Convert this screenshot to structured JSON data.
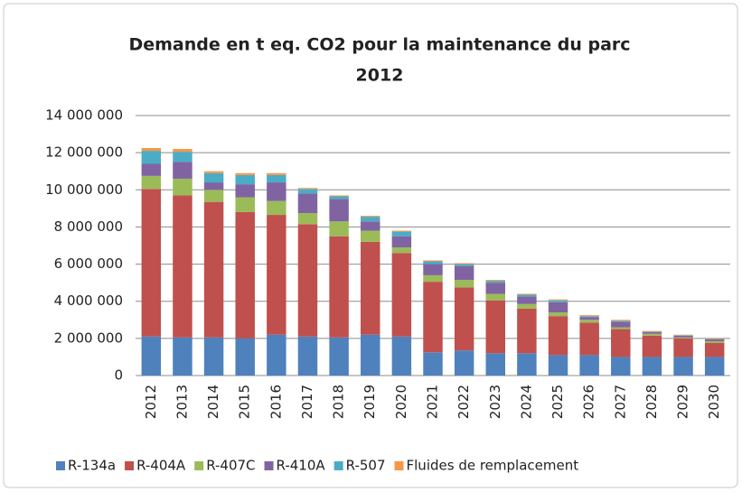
{
  "chart_data": {
    "type": "stacked_bar",
    "title": [
      "Demande en t eq. CO2 pour la maintenance du parc",
      "2012"
    ],
    "categories": [
      "2012",
      "2013",
      "2014",
      "2015",
      "2016",
      "2017",
      "2018",
      "2019",
      "2020",
      "2021",
      "2022",
      "2023",
      "2024",
      "2025",
      "2026",
      "2027",
      "2028",
      "2029",
      "2030"
    ],
    "series": [
      {
        "name": "R-134a",
        "color": "#4f81bd",
        "values": [
          2100000,
          2050000,
          2050000,
          2000000,
          2200000,
          2100000,
          2050000,
          2200000,
          2100000,
          1250000,
          1350000,
          1200000,
          1200000,
          1100000,
          1100000,
          1000000,
          1000000,
          1000000,
          1000000
        ]
      },
      {
        "name": "R-404A",
        "color": "#c0504d",
        "values": [
          7950000,
          7650000,
          7300000,
          6800000,
          6450000,
          6050000,
          5450000,
          5000000,
          4500000,
          3800000,
          3400000,
          2850000,
          2400000,
          2100000,
          1750000,
          1500000,
          1150000,
          1000000,
          750000
        ]
      },
      {
        "name": "R-407C",
        "color": "#9bbb59",
        "values": [
          700000,
          900000,
          650000,
          800000,
          750000,
          600000,
          800000,
          600000,
          300000,
          350000,
          400000,
          350000,
          250000,
          200000,
          150000,
          100000,
          100000,
          50000,
          100000
        ]
      },
      {
        "name": "R-410A",
        "color": "#8064a2",
        "values": [
          650000,
          900000,
          400000,
          700000,
          1000000,
          1050000,
          1200000,
          500000,
          600000,
          600000,
          750000,
          600000,
          400000,
          550000,
          150000,
          300000,
          100000,
          100000,
          100000
        ]
      },
      {
        "name": "R-507",
        "color": "#4bacc6",
        "values": [
          700000,
          550000,
          500000,
          500000,
          400000,
          250000,
          150000,
          250000,
          250000,
          150000,
          100000,
          100000,
          100000,
          100000,
          50000,
          50000,
          20000,
          20000,
          20000
        ]
      },
      {
        "name": "Fluides de remplacement",
        "color": "#f79646",
        "values": [
          150000,
          150000,
          100000,
          100000,
          100000,
          50000,
          50000,
          50000,
          50000,
          50000,
          50000,
          50000,
          50000,
          50000,
          50000,
          50000,
          30000,
          30000,
          30000
        ]
      }
    ],
    "ylim": [
      0,
      14000000
    ],
    "yticks": [
      0,
      {
        "value": 2000000,
        "label": "2 000 000"
      },
      {
        "value": 4000000,
        "label": "4 000 000"
      },
      {
        "value": 6000000,
        "label": "6 000 000"
      },
      {
        "value": 8000000,
        "label": "8 000 000"
      },
      {
        "value": 10000000,
        "label": "10 000 000"
      },
      {
        "value": 12000000,
        "label": "12 000 000"
      },
      {
        "value": 14000000,
        "label": "14 000 000"
      }
    ],
    "grid": true,
    "legend": "bottom"
  }
}
